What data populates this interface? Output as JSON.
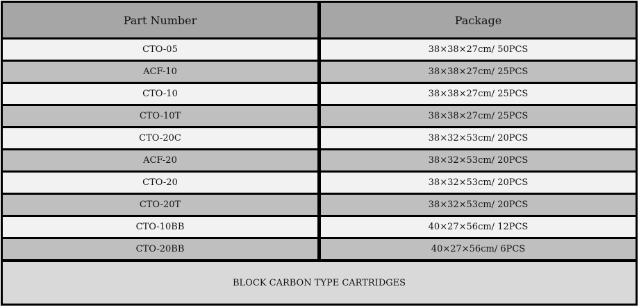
{
  "headers": {
    "part_number": "Part Number",
    "package": "Package"
  },
  "rows": [
    {
      "part": "CTO-05",
      "package": "38×38×27cm/ 50PCS"
    },
    {
      "part": "ACF-10",
      "package": "38×38×27cm/ 25PCS"
    },
    {
      "part": "CTO-10",
      "package": "38×38×27cm/ 25PCS"
    },
    {
      "part": "CTO-10T",
      "package": "38×38×27cm/ 25PCS"
    },
    {
      "part": "CTO-20C",
      "package": "38×32×53cm/ 20PCS"
    },
    {
      "part": "ACF-20",
      "package": "38×32×53cm/ 20PCS"
    },
    {
      "part": "CTO-20",
      "package": "38×32×53cm/ 20PCS"
    },
    {
      "part": "CTO-20T",
      "package": "38×32×53cm/ 20PCS"
    },
    {
      "part": "CTO-10BB",
      "package": "40×27×56cm/ 12PCS"
    },
    {
      "part": "CTO-20BB",
      "package": "40×27×56cm/ 6PCS"
    }
  ],
  "footer": "BLOCK CARBON TYPE CARTRIDGES",
  "colors": {
    "header_bg": "#a6a6a6",
    "row_light": "#f2f2f2",
    "row_dark": "#bfbfbf",
    "footer_bg": "#d9d9d9",
    "border": "#000000"
  }
}
